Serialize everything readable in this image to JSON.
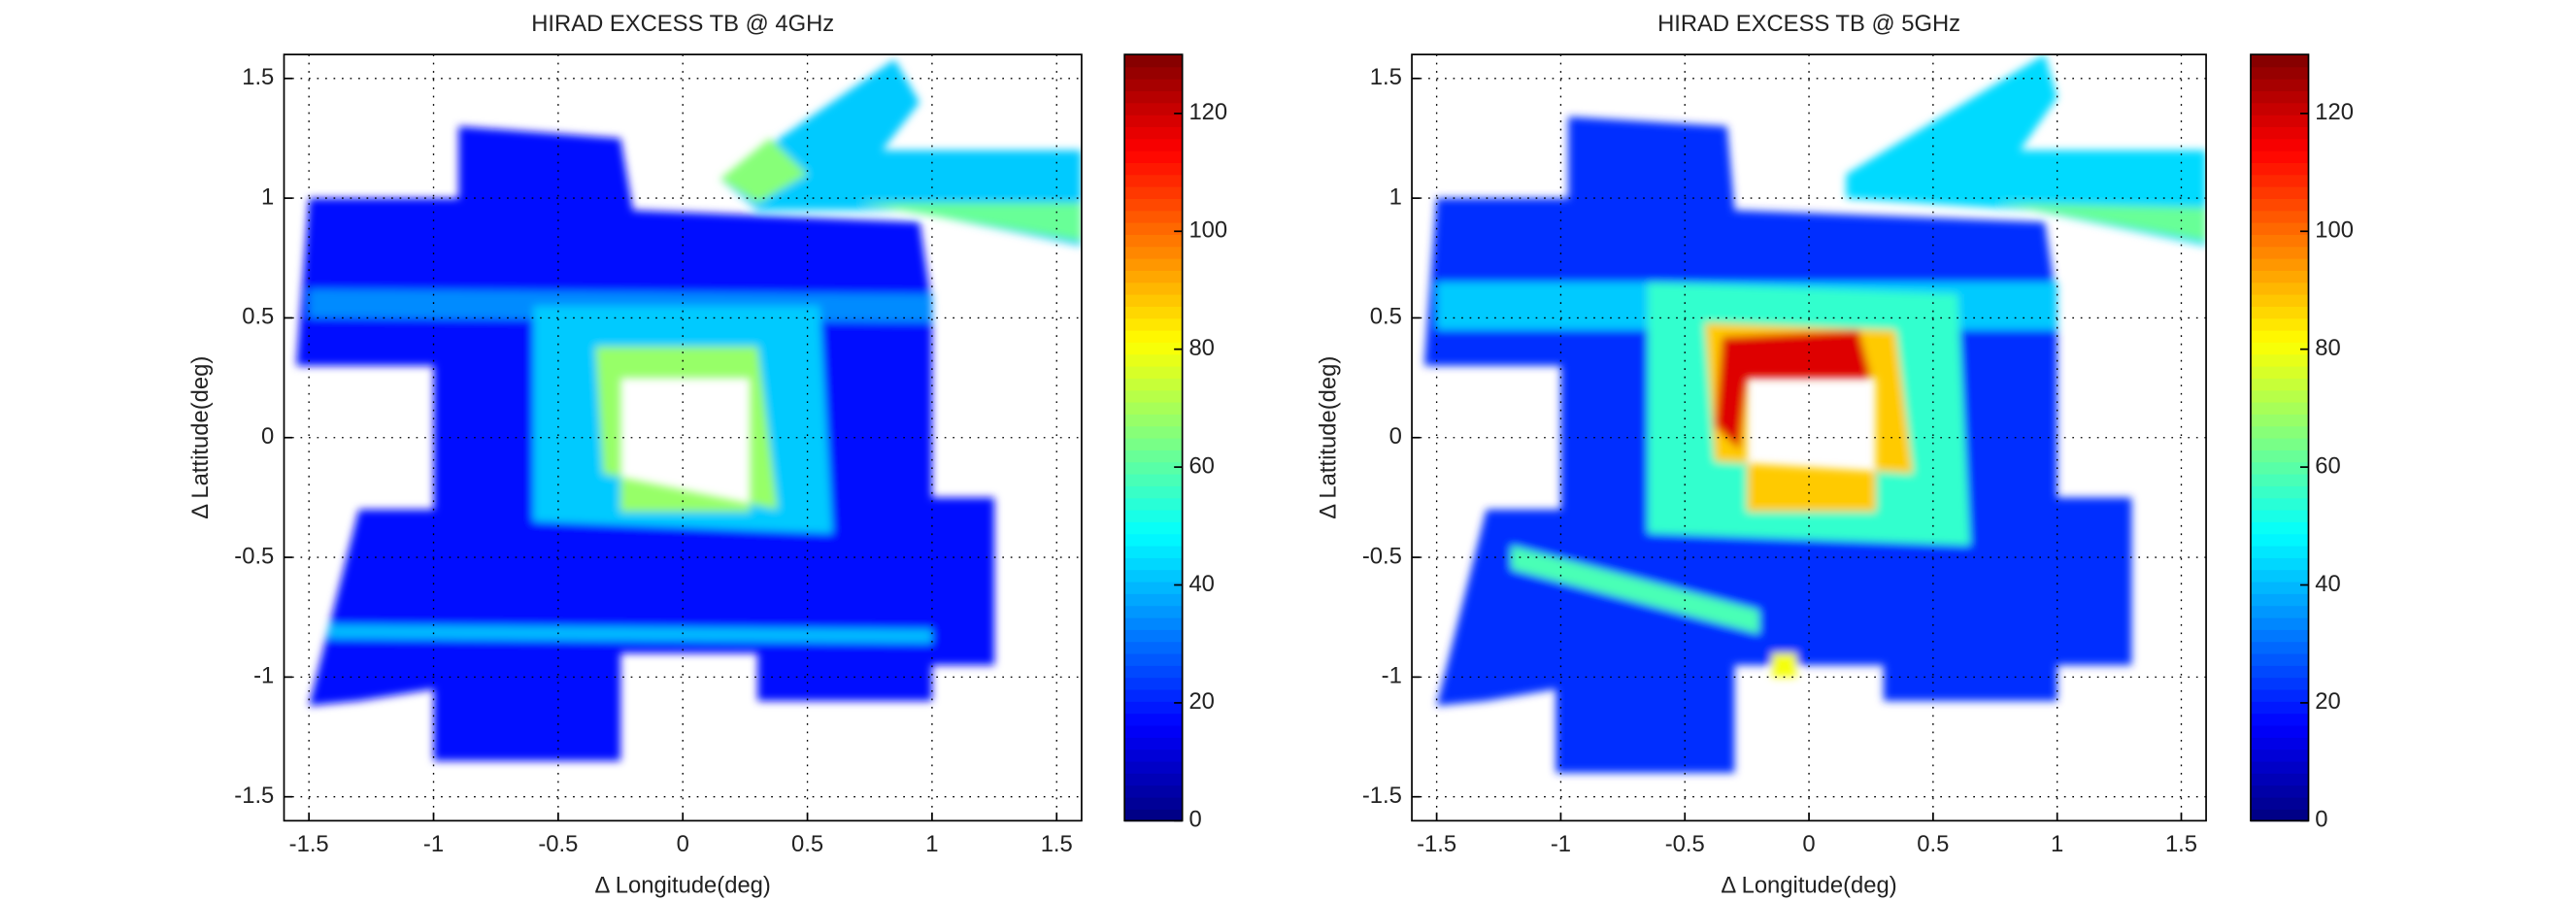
{
  "chart_data": [
    {
      "type": "heatmap",
      "title": "HIRAD EXCESS TB @ 4GHz",
      "xlabel": "Δ Longitude(deg)",
      "ylabel": "Δ Lattitude(deg)",
      "xlim": [
        -1.6,
        1.6
      ],
      "ylim": [
        -1.6,
        1.6
      ],
      "xticks": [
        -1.5,
        -1,
        -0.5,
        0,
        0.5,
        1,
        1.5
      ],
      "yticks": [
        -1.5,
        -1,
        -0.5,
        0,
        0.5,
        1,
        1.5
      ],
      "clim": [
        0,
        130
      ],
      "cticks": [
        0,
        20,
        40,
        60,
        80,
        100,
        120
      ],
      "colormap": "jet",
      "grid": true,
      "patches": [
        {
          "rings": [
            [
              [
                -1.55,
                0.3
              ],
              [
                -1.5,
                1.0
              ],
              [
                -0.9,
                1.0
              ],
              [
                -0.9,
                1.3
              ],
              [
                -0.25,
                1.25
              ],
              [
                -0.2,
                0.95
              ],
              [
                0.95,
                0.9
              ],
              [
                1.0,
                0.55
              ],
              [
                1.0,
                -0.25
              ],
              [
                1.25,
                -0.25
              ],
              [
                1.25,
                -0.95
              ],
              [
                1.0,
                -0.95
              ],
              [
                1.0,
                -1.1
              ],
              [
                0.3,
                -1.1
              ],
              [
                0.3,
                -0.9
              ],
              [
                -0.25,
                -0.9
              ],
              [
                -0.25,
                -1.35
              ],
              [
                -1.0,
                -1.35
              ],
              [
                -1.0,
                -1.05
              ],
              [
                -1.3,
                -1.1
              ],
              [
                -1.5,
                -1.12
              ],
              [
                -1.3,
                -0.3
              ],
              [
                -1.0,
                -0.3
              ],
              [
                -1.0,
                0.3
              ]
            ],
            [
              [
                -0.25,
                0.25
              ],
              [
                0.27,
                0.25
              ],
              [
                0.27,
                -0.31
              ],
              [
                -0.25,
                -0.31
              ]
            ]
          ],
          "value": 18
        },
        {
          "rings": [
            [
              [
                -1.5,
                0.5
              ],
              [
                1.0,
                0.48
              ],
              [
                1.0,
                0.6
              ],
              [
                -1.5,
                0.62
              ]
            ]
          ],
          "value": 34
        },
        {
          "rings": [
            [
              [
                -0.6,
                0.55
              ],
              [
                0.55,
                0.55
              ],
              [
                0.6,
                -0.4
              ],
              [
                -0.6,
                -0.35
              ]
            ],
            [
              [
                -0.25,
                0.25
              ],
              [
                0.27,
                0.25
              ],
              [
                0.27,
                -0.31
              ],
              [
                -0.25,
                -0.31
              ]
            ]
          ],
          "value": 42
        },
        {
          "rings": [
            [
              [
                -0.35,
                0.38
              ],
              [
                0.3,
                0.38
              ],
              [
                0.38,
                -0.3
              ],
              [
                -0.32,
                -0.15
              ]
            ],
            [
              [
                -0.25,
                0.25
              ],
              [
                0.27,
                0.25
              ],
              [
                0.27,
                -0.31
              ],
              [
                -0.25,
                -0.31
              ]
            ]
          ],
          "value": 68
        },
        {
          "rings": [
            [
              [
                -1.42,
                -0.78
              ],
              [
                1.0,
                -0.8
              ],
              [
                1.0,
                -0.86
              ],
              [
                -1.42,
                -0.84
              ]
            ]
          ],
          "value": 40
        },
        {
          "rings": [
            [
              [
                0.15,
                1.08
              ],
              [
                0.85,
                1.58
              ],
              [
                0.95,
                1.4
              ],
              [
                0.8,
                1.2
              ],
              [
                1.6,
                1.2
              ],
              [
                1.6,
                0.8
              ],
              [
                0.9,
                0.95
              ],
              [
                0.3,
                0.95
              ]
            ]
          ],
          "value": 42
        },
        {
          "rings": [
            [
              [
                0.15,
                1.08
              ],
              [
                0.35,
                1.25
              ],
              [
                0.5,
                1.1
              ],
              [
                0.3,
                0.98
              ]
            ]
          ],
          "value": 66
        },
        {
          "rings": [
            [
              [
                0.7,
                0.98
              ],
              [
                1.6,
                0.98
              ],
              [
                1.6,
                0.82
              ]
            ]
          ],
          "value": 62
        }
      ]
    },
    {
      "type": "heatmap",
      "title": "HIRAD EXCESS TB @ 5GHz",
      "xlabel": "Δ Longitude(deg)",
      "ylabel": "Δ Lattitude(deg)",
      "xlim": [
        -1.6,
        1.6
      ],
      "ylim": [
        -1.6,
        1.6
      ],
      "xticks": [
        -1.5,
        -1,
        -0.5,
        0,
        0.5,
        1,
        1.5
      ],
      "yticks": [
        -1.5,
        -1,
        -0.5,
        0,
        0.5,
        1,
        1.5
      ],
      "clim": [
        0,
        130
      ],
      "cticks": [
        0,
        20,
        40,
        60,
        80,
        100,
        120
      ],
      "colormap": "jet",
      "grid": true,
      "patches": [
        {
          "rings": [
            [
              [
                -1.55,
                0.3
              ],
              [
                -1.5,
                1.0
              ],
              [
                -0.97,
                1.0
              ],
              [
                -0.97,
                1.34
              ],
              [
                -0.33,
                1.3
              ],
              [
                -0.3,
                0.95
              ],
              [
                0.95,
                0.9
              ],
              [
                1.0,
                0.55
              ],
              [
                1.0,
                -0.25
              ],
              [
                1.3,
                -0.25
              ],
              [
                1.3,
                -0.95
              ],
              [
                1.0,
                -0.95
              ],
              [
                1.0,
                -1.1
              ],
              [
                0.3,
                -1.1
              ],
              [
                0.3,
                -0.95
              ],
              [
                -0.3,
                -0.95
              ],
              [
                -0.3,
                -1.4
              ],
              [
                -1.02,
                -1.4
              ],
              [
                -1.02,
                -1.05
              ],
              [
                -1.3,
                -1.1
              ],
              [
                -1.5,
                -1.12
              ],
              [
                -1.3,
                -0.3
              ],
              [
                -1.0,
                -0.3
              ],
              [
                -1.0,
                0.3
              ]
            ],
            [
              [
                -0.25,
                0.25
              ],
              [
                0.27,
                0.25
              ],
              [
                0.27,
                -0.31
              ],
              [
                -0.25,
                -0.31
              ]
            ]
          ],
          "value": 22
        },
        {
          "rings": [
            [
              [
                -1.5,
                0.45
              ],
              [
                1.0,
                0.45
              ],
              [
                1.0,
                0.65
              ],
              [
                -1.5,
                0.65
              ]
            ]
          ],
          "value": 42
        },
        {
          "rings": [
            [
              [
                -0.65,
                0.65
              ],
              [
                0.6,
                0.6
              ],
              [
                0.65,
                -0.45
              ],
              [
                -0.65,
                -0.4
              ]
            ],
            [
              [
                -0.25,
                0.25
              ],
              [
                0.27,
                0.25
              ],
              [
                0.27,
                -0.31
              ],
              [
                -0.25,
                -0.31
              ]
            ]
          ],
          "value": 55
        },
        {
          "rings": [
            [
              [
                -0.42,
                0.48
              ],
              [
                0.35,
                0.45
              ],
              [
                0.42,
                -0.15
              ],
              [
                -0.38,
                -0.1
              ]
            ],
            [
              [
                -0.25,
                0.25
              ],
              [
                0.27,
                0.25
              ],
              [
                0.27,
                -0.31
              ],
              [
                -0.25,
                -0.31
              ]
            ]
          ],
          "value": 88
        },
        {
          "rings": [
            [
              [
                -0.35,
                0.42
              ],
              [
                0.2,
                0.45
              ],
              [
                0.25,
                0.25
              ],
              [
                -0.25,
                0.25
              ],
              [
                -0.28,
                -0.05
              ],
              [
                -0.38,
                0.05
              ]
            ]
          ],
          "value": 118
        },
        {
          "rings": [
            [
              [
                -1.2,
                -0.45
              ],
              [
                -0.2,
                -0.72
              ],
              [
                -0.2,
                -0.82
              ],
              [
                -1.2,
                -0.55
              ]
            ]
          ],
          "value": 58
        },
        {
          "rings": [
            [
              [
                -0.15,
                -0.9
              ],
              [
                -0.05,
                -0.9
              ],
              [
                -0.05,
                -1.0
              ],
              [
                -0.15,
                -1.0
              ]
            ]
          ],
          "value": 80
        },
        {
          "rings": [
            [
              [
                0.15,
                1.1
              ],
              [
                0.95,
                1.6
              ],
              [
                1.0,
                1.42
              ],
              [
                0.85,
                1.2
              ],
              [
                1.6,
                1.2
              ],
              [
                1.6,
                0.8
              ],
              [
                0.9,
                0.95
              ],
              [
                0.15,
                1.0
              ]
            ]
          ],
          "value": 44
        },
        {
          "rings": [
            [
              [
                0.75,
                0.98
              ],
              [
                1.6,
                0.96
              ],
              [
                1.6,
                0.82
              ]
            ]
          ],
          "value": 62
        }
      ]
    }
  ]
}
